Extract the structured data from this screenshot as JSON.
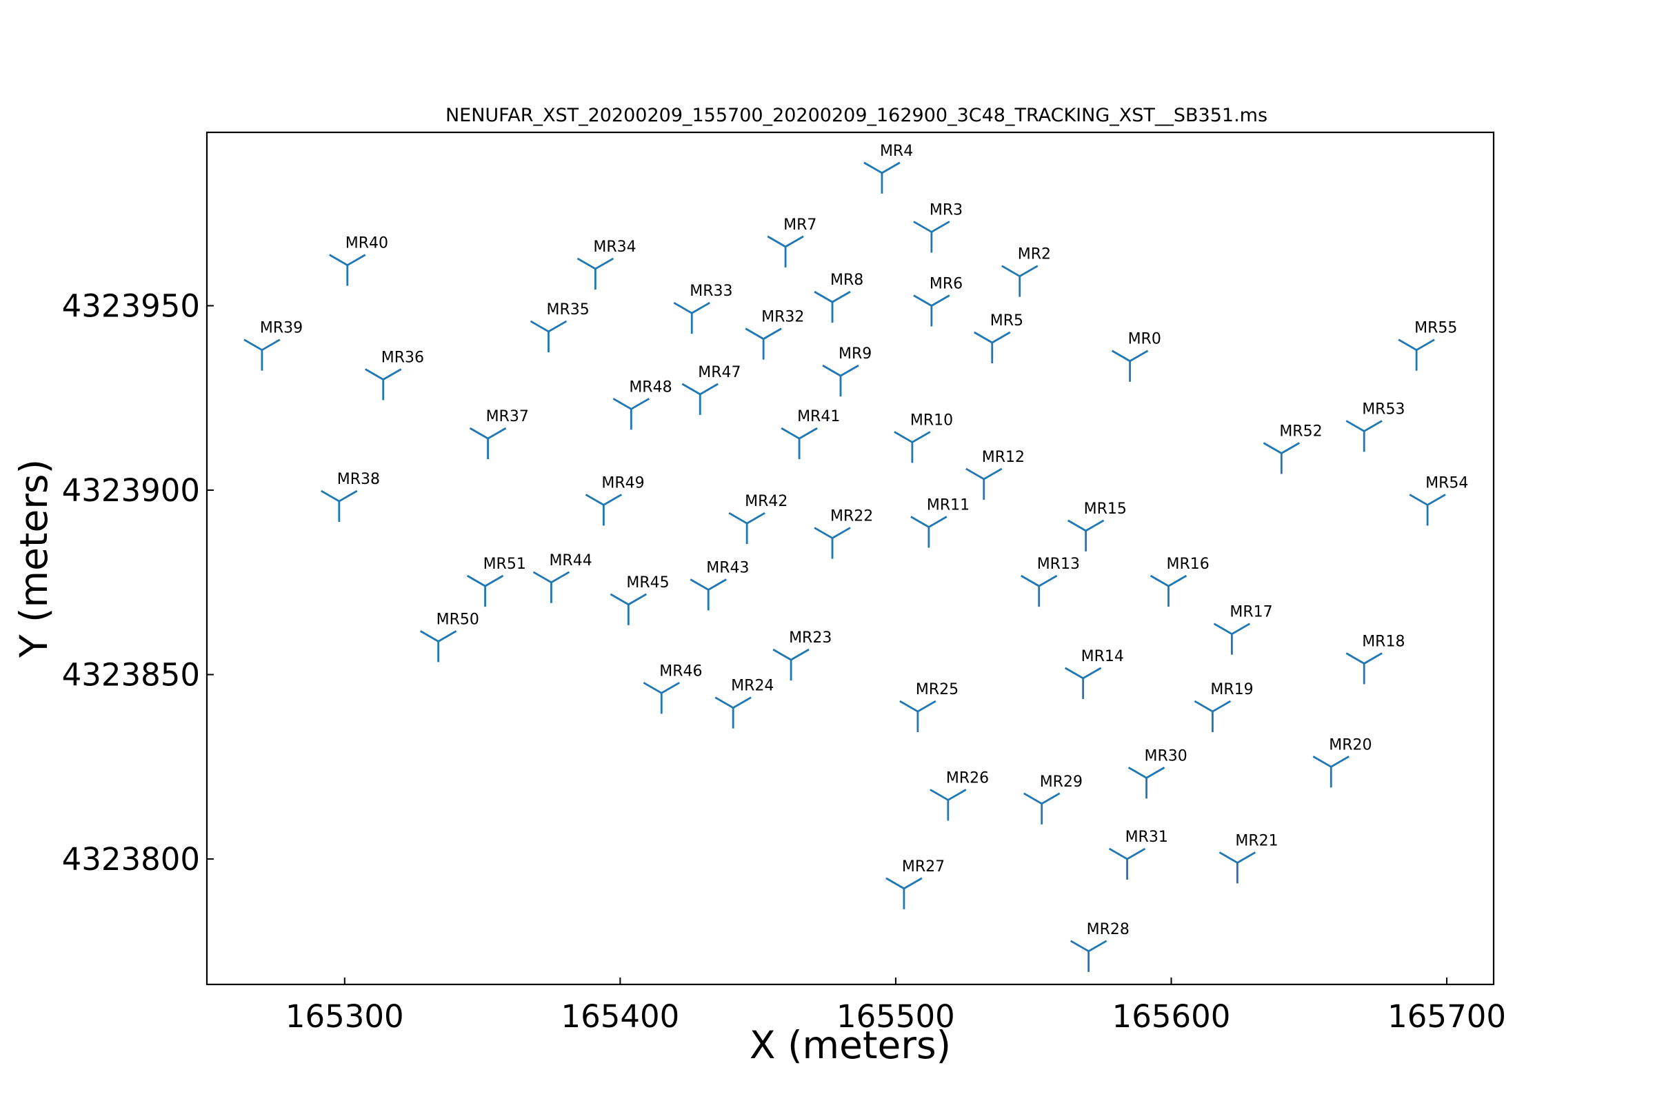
{
  "chart_data": {
    "type": "scatter",
    "title": "NENUFAR_XST_20200209_155700_20200209_162900_3C48_TRACKING_XST__SB351.ms",
    "xlabel": "X (meters)",
    "ylabel": "Y (meters)",
    "xlim": [
      165250,
      165717
    ],
    "ylim": [
      4323766,
      4323997
    ],
    "xticks": [
      {
        "value": 165300,
        "label": "165300"
      },
      {
        "value": 165400,
        "label": "165400"
      },
      {
        "value": 165500,
        "label": "165500"
      },
      {
        "value": 165600,
        "label": "165600"
      },
      {
        "value": 165700,
        "label": "165700"
      }
    ],
    "yticks": [
      {
        "value": 4323800,
        "label": "4323800"
      },
      {
        "value": 4323850,
        "label": "4323850"
      },
      {
        "value": 4323900,
        "label": "4323900"
      },
      {
        "value": 4323950,
        "label": "4323950"
      }
    ],
    "marker": "tri_down",
    "marker_color": "#1f77b4",
    "grid": false,
    "points": [
      {
        "name": "MR0",
        "x": 165585,
        "y": 4323935
      },
      {
        "name": "MR2",
        "x": 165545,
        "y": 4323958
      },
      {
        "name": "MR3",
        "x": 165513,
        "y": 4323970
      },
      {
        "name": "MR4",
        "x": 165495,
        "y": 4323986
      },
      {
        "name": "MR5",
        "x": 165535,
        "y": 4323940
      },
      {
        "name": "MR6",
        "x": 165513,
        "y": 4323950
      },
      {
        "name": "MR7",
        "x": 165460,
        "y": 4323966
      },
      {
        "name": "MR8",
        "x": 165477,
        "y": 4323951
      },
      {
        "name": "MR9",
        "x": 165480,
        "y": 4323931
      },
      {
        "name": "MR10",
        "x": 165506,
        "y": 4323913
      },
      {
        "name": "MR11",
        "x": 165512,
        "y": 4323890
      },
      {
        "name": "MR12",
        "x": 165532,
        "y": 4323903
      },
      {
        "name": "MR13",
        "x": 165552,
        "y": 4323874
      },
      {
        "name": "MR14",
        "x": 165568,
        "y": 4323849
      },
      {
        "name": "MR15",
        "x": 165569,
        "y": 4323889
      },
      {
        "name": "MR16",
        "x": 165599,
        "y": 4323874
      },
      {
        "name": "MR17",
        "x": 165622,
        "y": 4323861
      },
      {
        "name": "MR18",
        "x": 165670,
        "y": 4323853
      },
      {
        "name": "MR19",
        "x": 165615,
        "y": 4323840
      },
      {
        "name": "MR20",
        "x": 165658,
        "y": 4323825
      },
      {
        "name": "MR21",
        "x": 165624,
        "y": 4323799
      },
      {
        "name": "MR22",
        "x": 165477,
        "y": 4323887
      },
      {
        "name": "MR23",
        "x": 165462,
        "y": 4323854
      },
      {
        "name": "MR24",
        "x": 165441,
        "y": 4323841
      },
      {
        "name": "MR25",
        "x": 165508,
        "y": 4323840
      },
      {
        "name": "MR26",
        "x": 165519,
        "y": 4323816
      },
      {
        "name": "MR27",
        "x": 165503,
        "y": 4323792
      },
      {
        "name": "MR28",
        "x": 165570,
        "y": 4323775
      },
      {
        "name": "MR29",
        "x": 165553,
        "y": 4323815
      },
      {
        "name": "MR30",
        "x": 165591,
        "y": 4323822
      },
      {
        "name": "MR31",
        "x": 165584,
        "y": 4323800
      },
      {
        "name": "MR32",
        "x": 165452,
        "y": 4323941
      },
      {
        "name": "MR33",
        "x": 165426,
        "y": 4323948
      },
      {
        "name": "MR34",
        "x": 165391,
        "y": 4323960
      },
      {
        "name": "MR35",
        "x": 165374,
        "y": 4323943
      },
      {
        "name": "MR36",
        "x": 165314,
        "y": 4323930
      },
      {
        "name": "MR37",
        "x": 165352,
        "y": 4323914
      },
      {
        "name": "MR38",
        "x": 165298,
        "y": 4323897
      },
      {
        "name": "MR39",
        "x": 165270,
        "y": 4323938
      },
      {
        "name": "MR40",
        "x": 165301,
        "y": 4323961
      },
      {
        "name": "MR41",
        "x": 165465,
        "y": 4323914
      },
      {
        "name": "MR42",
        "x": 165446,
        "y": 4323891
      },
      {
        "name": "MR43",
        "x": 165432,
        "y": 4323873
      },
      {
        "name": "MR44",
        "x": 165375,
        "y": 4323875
      },
      {
        "name": "MR45",
        "x": 165403,
        "y": 4323869
      },
      {
        "name": "MR46",
        "x": 165415,
        "y": 4323845
      },
      {
        "name": "MR47",
        "x": 165429,
        "y": 4323926
      },
      {
        "name": "MR48",
        "x": 165404,
        "y": 4323922
      },
      {
        "name": "MR49",
        "x": 165394,
        "y": 4323896
      },
      {
        "name": "MR50",
        "x": 165334,
        "y": 4323859
      },
      {
        "name": "MR51",
        "x": 165351,
        "y": 4323874
      },
      {
        "name": "MR52",
        "x": 165640,
        "y": 4323910
      },
      {
        "name": "MR53",
        "x": 165670,
        "y": 4323916
      },
      {
        "name": "MR54",
        "x": 165693,
        "y": 4323896
      },
      {
        "name": "MR55",
        "x": 165689,
        "y": 4323938
      }
    ]
  }
}
